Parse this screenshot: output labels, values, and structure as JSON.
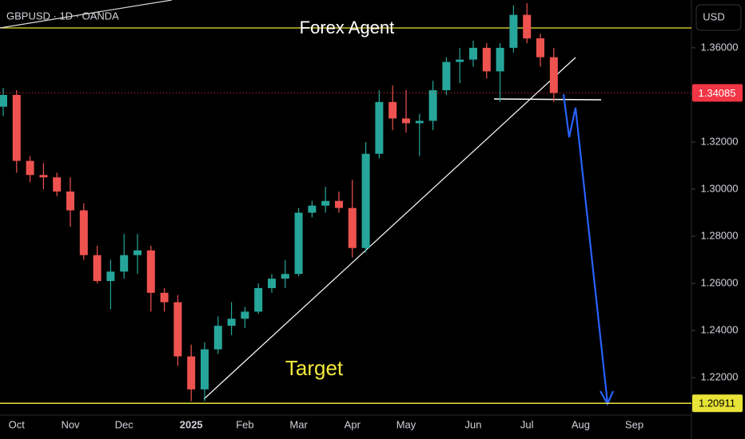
{
  "chart_data": {
    "type": "candlestick",
    "title": "Forex Agent",
    "annotation": "Target",
    "symbol": "GBPUSD · 1D · OANDA",
    "currency": "USD",
    "categories": [
      null,
      "Oct",
      null,
      null,
      null,
      "Nov",
      null,
      null,
      null,
      "Dec",
      null,
      null,
      null,
      null,
      "2025",
      null,
      null,
      null,
      "Feb",
      null,
      null,
      null,
      "Mar",
      null,
      null,
      null,
      "Apr",
      null,
      null,
      null,
      "May",
      null,
      null,
      null,
      null,
      "Jun",
      null,
      null,
      null,
      "Jul",
      null,
      null,
      null,
      "Aug",
      null,
      null,
      null,
      "Sep",
      null,
      null
    ],
    "open": [
      1.335,
      1.34,
      1.312,
      1.306,
      1.305,
      1.299,
      1.291,
      1.272,
      1.261,
      1.265,
      1.272,
      1.274,
      1.256,
      1.252,
      1.229,
      1.215,
      1.232,
      1.242,
      1.245,
      1.248,
      1.258,
      1.262,
      1.264,
      1.29,
      1.293,
      1.295,
      1.292,
      1.275,
      1.315,
      1.337,
      1.33,
      1.328,
      1.329,
      1.342,
      1.354,
      1.355,
      1.36,
      1.35,
      1.36,
      1.374,
      1.364,
      1.356,
      null,
      null,
      null,
      null,
      null,
      null,
      null,
      null
    ],
    "high": [
      1.343,
      1.342,
      1.314,
      1.311,
      1.307,
      1.305,
      1.294,
      1.276,
      1.27,
      1.281,
      1.281,
      1.276,
      1.258,
      1.255,
      1.234,
      1.235,
      1.246,
      1.252,
      1.25,
      1.26,
      1.264,
      1.27,
      1.292,
      1.295,
      1.301,
      1.299,
      1.304,
      1.32,
      1.342,
      1.344,
      1.342,
      1.332,
      1.346,
      1.356,
      1.36,
      1.363,
      1.362,
      1.362,
      1.378,
      1.379,
      1.366,
      1.36,
      null,
      null,
      null,
      null,
      null,
      null,
      null,
      null
    ],
    "low": [
      1.331,
      1.307,
      1.303,
      1.3,
      1.297,
      1.284,
      1.27,
      1.26,
      1.249,
      1.262,
      1.264,
      1.248,
      1.248,
      1.225,
      1.21,
      1.21,
      1.23,
      1.238,
      1.241,
      1.247,
      1.256,
      1.258,
      1.263,
      1.288,
      1.29,
      1.29,
      1.271,
      1.273,
      1.313,
      1.325,
      1.324,
      1.314,
      1.325,
      1.34,
      1.345,
      1.352,
      1.347,
      1.337,
      1.358,
      1.362,
      1.352,
      1.337,
      null,
      null,
      null,
      null,
      null,
      null,
      null,
      null
    ],
    "close": [
      1.34,
      1.312,
      1.306,
      1.305,
      1.299,
      1.291,
      1.272,
      1.261,
      1.265,
      1.272,
      1.274,
      1.256,
      1.252,
      1.229,
      1.215,
      1.232,
      1.242,
      1.245,
      1.248,
      1.258,
      1.262,
      1.264,
      1.29,
      1.293,
      1.295,
      1.292,
      1.275,
      1.315,
      1.337,
      1.33,
      1.328,
      1.329,
      1.342,
      1.354,
      1.355,
      1.36,
      1.35,
      1.36,
      1.374,
      1.364,
      1.356,
      1.3408,
      null,
      null,
      null,
      null,
      null,
      null,
      null,
      null
    ],
    "up_color": "#26a69a",
    "down_color": "#ef5350",
    "ylim": [
      1.2041,
      1.3803
    ],
    "yticks": [
      {
        "value": 1.22,
        "label": "1.22000"
      },
      {
        "value": 1.24,
        "label": "1.24000"
      },
      {
        "value": 1.26,
        "label": "1.26000"
      },
      {
        "value": 1.28,
        "label": "1.28000"
      },
      {
        "value": 1.3,
        "label": "1.30000"
      },
      {
        "value": 1.32,
        "label": "1.32000"
      },
      {
        "value": 1.34,
        "label": "1.34000"
      },
      {
        "value": 1.36,
        "label": "1.36000"
      }
    ],
    "price_lines": [
      {
        "value": 1.34085,
        "color": "#f23645"
      },
      {
        "value": 1.20911,
        "color": "#e8e337"
      }
    ]
  }
}
